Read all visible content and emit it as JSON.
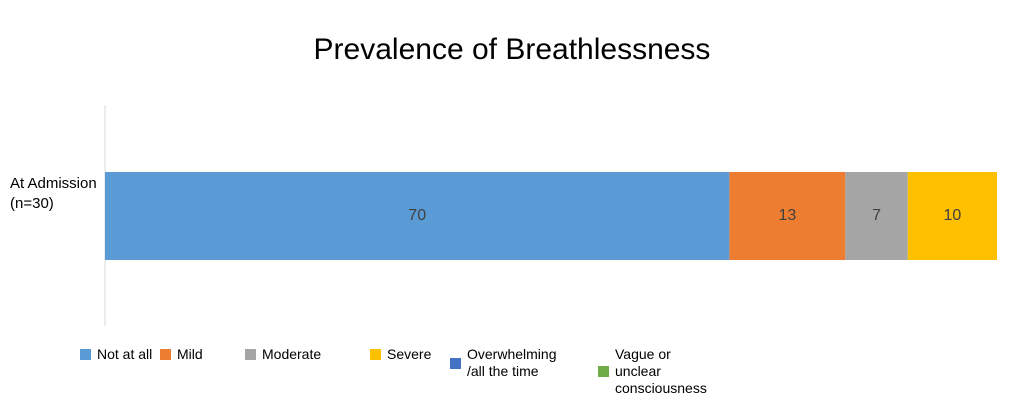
{
  "chart_data": {
    "type": "stacked-bar-horizontal",
    "title": "Prevalence of Breathlessness",
    "categories": [
      "At Admission (n=30)"
    ],
    "series": [
      {
        "name": "Not at all",
        "color": "#5b9bd5",
        "values": [
          70
        ]
      },
      {
        "name": "Mild",
        "color": "#ed7d31",
        "values": [
          13
        ]
      },
      {
        "name": "Moderate",
        "color": "#a5a5a5",
        "values": [
          7
        ]
      },
      {
        "name": "Severe",
        "color": "#ffc000",
        "values": [
          10
        ]
      },
      {
        "name": "Overwhelming /all the time",
        "color": "#4472c4",
        "values": [
          0
        ]
      },
      {
        "name": "Vague or unclear consciousness",
        "color": "#70ad47",
        "values": [
          0
        ]
      }
    ],
    "xlim": [
      0,
      100
    ],
    "legend": "bottom"
  }
}
